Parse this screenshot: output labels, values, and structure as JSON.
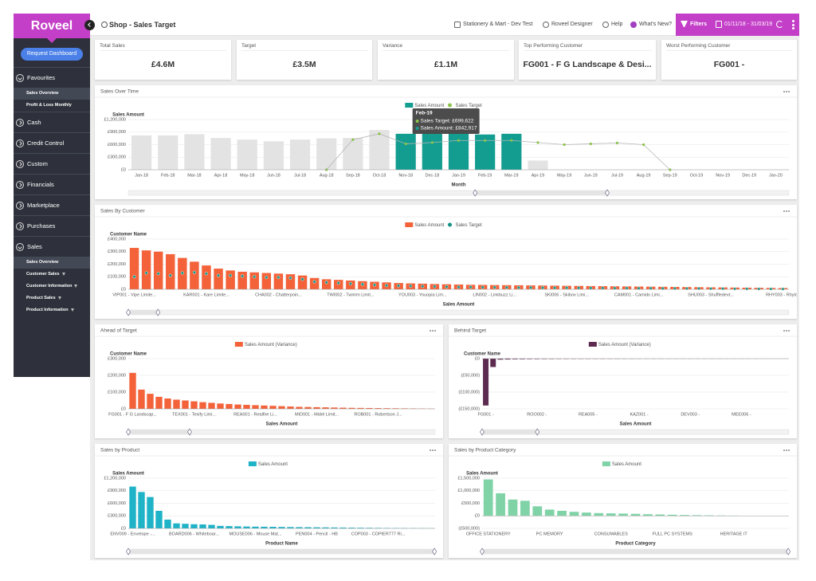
{
  "sidebar": {
    "logo": "Roveel",
    "button": "Request Dashboard",
    "sections": [
      {
        "label": "Favourites",
        "items": [
          {
            "label": "Sales Overview",
            "active": true
          },
          {
            "label": "Profit & Loss Monthly"
          }
        ]
      },
      {
        "label": "Cash"
      },
      {
        "label": "Credit Control"
      },
      {
        "label": "Custom"
      },
      {
        "label": "Financials"
      },
      {
        "label": "Marketplace"
      },
      {
        "label": "Purchases"
      },
      {
        "label": "Sales",
        "items": [
          {
            "label": "Sales Overview",
            "active": true
          },
          {
            "label": "Customer Sales",
            "filter": true
          },
          {
            "label": "Customer Information",
            "filter": true
          },
          {
            "label": "Product Sales",
            "filter": true
          },
          {
            "label": "Product Information",
            "filter": true
          }
        ]
      }
    ]
  },
  "header": {
    "title": "Shop - Sales Target",
    "links": [
      "Stationery & Mart - Dev Test",
      "Roveel Designer",
      "Help",
      "What's New?"
    ],
    "filters": "Filters",
    "date_range": "01/11/18 - 31/03/19"
  },
  "kpis": [
    {
      "label": "Total Sales",
      "value": "£4.6M"
    },
    {
      "label": "Target",
      "value": "£3.5M"
    },
    {
      "label": "Variance",
      "value": "£1.1M"
    },
    {
      "label": "Top Performing Customer",
      "value": "FG001 - F G Landscape & Desi..."
    },
    {
      "label": "Worst Performing Customer",
      "value": "FG001 -"
    }
  ],
  "charts": [
    {
      "type": "bar",
      "title": "Sales Over Time",
      "y_title": "Sales Amount",
      "x_title": "Month",
      "grid": true,
      "categories": [
        "Jan-18",
        "Feb-18",
        "Mar-18",
        "Apr-18",
        "May-18",
        "Jun-18",
        "Jul-18",
        "Aug-18",
        "Sep-18",
        "Oct-18",
        "Nov-18",
        "Dec-18",
        "Jan-19",
        "Feb-19",
        "Mar-19",
        "Apr-19",
        "May-19",
        "Jun-19",
        "Jul-19",
        "Aug-19",
        "Sep-19",
        "Oct-19",
        "Nov-19",
        "Dec-19",
        "Jan-20"
      ],
      "series": [
        {
          "name": "Sales Amount",
          "kind": "bar",
          "color": "#139c90",
          "colors": [
            "#e3e3e3",
            "#e3e3e3",
            "#e3e3e3",
            "#e3e3e3",
            "#e3e3e3",
            "#e3e3e3",
            "#e3e3e3",
            "#e3e3e3",
            "#e3e3e3",
            "#e3e3e3",
            "#139c90",
            "#139c90",
            "#139c90",
            "#139c90",
            "#139c90",
            "#e3e3e3",
            "#e3e3e3",
            "#e3e3e3",
            "#e3e3e3",
            "#e3e3e3",
            "#e3e3e3",
            "#e3e3e3",
            "#e3e3e3",
            "#e3e3e3",
            "#e3e3e3"
          ],
          "values": [
            820000,
            820000,
            850000,
            760000,
            720000,
            680000,
            720000,
            750000,
            760000,
            950000,
            860000,
            860000,
            860000,
            842917,
            860000,
            220000,
            0,
            0,
            0,
            0,
            0,
            0,
            0,
            0,
            0
          ]
        },
        {
          "name": "Sales Target",
          "kind": "line",
          "color": "#b5b5b5",
          "marker_color": "#8bc34a",
          "values": [
            null,
            null,
            null,
            null,
            null,
            null,
            null,
            0,
            720000,
            860000,
            620000,
            650000,
            700000,
            699622,
            700000,
            650000,
            600000,
            620000,
            640000,
            600000,
            0,
            null,
            null,
            null,
            null
          ]
        }
      ],
      "ylim": [
        0,
        1200000
      ],
      "yticks": [
        {
          "value": 0,
          "label": "£0"
        },
        {
          "value": 300000,
          "label": "£300,000"
        },
        {
          "value": 600000,
          "label": "£600,000"
        },
        {
          "value": 900000,
          "label": "£900,000"
        },
        {
          "value": 1200000,
          "label": "£1,200,000"
        }
      ],
      "tooltip": {
        "title": "Feb-19",
        "lines": [
          "Sales Target: £699,622",
          "Sales Amount: £842,917"
        ]
      }
    },
    {
      "type": "bar",
      "title": "Sales By Customer",
      "y_title": "Customer Name",
      "x_title": "Sales Amount",
      "grid": true,
      "categories": [
        "VIP001 - Vipe Limite...",
        null,
        null,
        null,
        null,
        null,
        "KAR001 - Kare Limite...",
        null,
        null,
        null,
        null,
        null,
        "CHA002 - Chatterpoin...",
        null,
        null,
        null,
        null,
        null,
        "TWI002 - Twimm Limit...",
        null,
        null,
        null,
        null,
        null,
        "YOU003 - Youopia Lim...",
        null,
        null,
        null,
        null,
        null,
        "LIN002 - Linkbuzz Li...",
        null,
        null,
        null,
        null,
        null,
        "SKI006 - Skibox Limi...",
        null,
        null,
        null,
        null,
        null,
        "CAM001 - Camido Limi...",
        null,
        null,
        null,
        null,
        null,
        "SHU003 - Shuffledext...",
        null,
        null,
        null,
        null,
        null,
        "RHY003 - Rhyloo"
      ],
      "series": [
        {
          "name": "Sales Amount",
          "kind": "bar",
          "color": "#f4623a",
          "values": [
            330000,
            310000,
            300000,
            280000,
            250000,
            220000,
            190000,
            165000,
            150000,
            140000,
            135000,
            130000,
            125000,
            120000,
            110000,
            90000,
            80000,
            75000,
            70000,
            65000,
            60000,
            55000,
            50000,
            47000,
            45000,
            42000,
            40000,
            38000,
            36000,
            35000,
            34000,
            33000,
            32000,
            31000,
            30000,
            29000,
            28000,
            27000,
            26000,
            25000,
            24000,
            23000,
            22000,
            21000,
            20000,
            19000,
            18000,
            17000,
            16000,
            15000,
            14000,
            13000,
            12000,
            11000,
            10000
          ]
        },
        {
          "name": "Sales Target",
          "kind": "points",
          "color": "#138f86",
          "values": [
            100000,
            130000,
            125000,
            110000,
            130000,
            135000,
            125000,
            110000,
            110000,
            105000,
            100000,
            95000,
            95000,
            90000,
            80000,
            60000,
            55000,
            50000,
            45000,
            40000,
            35000,
            30000,
            28000,
            26000,
            24000,
            22000,
            20000,
            18000,
            18000,
            16000,
            16000,
            15000,
            14000,
            14000,
            13000,
            12000,
            12000,
            11000,
            10000,
            10000,
            9000,
            9000,
            8000,
            8000,
            7000,
            7000,
            6000,
            6000,
            5000,
            5000,
            4000,
            4000,
            3000,
            3000,
            2000
          ]
        }
      ],
      "ylim": [
        0,
        400000
      ],
      "yticks": [
        {
          "value": 0,
          "label": "£0"
        },
        {
          "value": 100000,
          "label": "£100,000"
        },
        {
          "value": 200000,
          "label": "£200,000"
        },
        {
          "value": 300000,
          "label": "£300,000"
        },
        {
          "value": 400000,
          "label": "£400,000"
        }
      ]
    },
    {
      "type": "bar",
      "title": "Ahead of Target",
      "y_title": "Customer Name",
      "x_title": "Sales Amount",
      "grid": true,
      "categories": [
        "FG001 - F G Landscap...",
        null,
        null,
        null,
        null,
        null,
        null,
        "TEX001 - Texify Limi...",
        null,
        null,
        null,
        null,
        null,
        null,
        "REA001 - Realfire Li...",
        null,
        null,
        null,
        null,
        null,
        null,
        "MID001 - Midel Limit...",
        null,
        null,
        null,
        null,
        null,
        null,
        "ROB001 - Robertson J...",
        null,
        null,
        null,
        null,
        null,
        null
      ],
      "series": [
        {
          "name": "Sales Amount (Variance)",
          "kind": "bar",
          "color": "#f4623a",
          "values": [
            215000,
            115000,
            90000,
            72000,
            62000,
            55000,
            50000,
            45000,
            40000,
            36000,
            32000,
            29000,
            26000,
            24000,
            22000,
            20000,
            18000,
            16000,
            14000,
            12000,
            11000,
            10000,
            9000,
            8000,
            7000,
            6000,
            5500,
            5000,
            4500,
            4000,
            3500,
            3000,
            2500,
            2000,
            1500
          ]
        }
      ],
      "ylim": [
        0,
        300000
      ],
      "yticks": [
        {
          "value": 0,
          "label": "£0"
        },
        {
          "value": 100000,
          "label": "£100,000"
        },
        {
          "value": 200000,
          "label": "£200,000"
        },
        {
          "value": 300000,
          "label": "£300,000"
        }
      ]
    },
    {
      "type": "bar",
      "title": "Behind Target",
      "y_title": "Customer Name",
      "x_title": "Sales Amount",
      "grid": true,
      "categories": [
        "FG001 -",
        null,
        null,
        null,
        null,
        null,
        null,
        "ROO002 -",
        null,
        null,
        null,
        null,
        null,
        null,
        "REA005 -",
        null,
        null,
        null,
        null,
        null,
        null,
        "KAZ001 -",
        null,
        null,
        null,
        null,
        null,
        null,
        "DEV003 -",
        null,
        null,
        null,
        null,
        null,
        null,
        "MEE006 -",
        null,
        null,
        null,
        null,
        null,
        null
      ],
      "series": [
        {
          "name": "Sales Amount (Variance)",
          "kind": "bar",
          "color": "#5d2a50",
          "values": [
            -140000,
            -25000,
            -3000,
            -2500,
            -2000,
            -1800,
            -1600,
            -1500,
            -1400,
            -1300,
            -1200,
            -1100,
            -1000,
            -950,
            -900,
            -850,
            -800,
            -750,
            -700,
            -650,
            -600,
            -550,
            -500,
            -480,
            -460,
            -440,
            -420,
            -400,
            -380,
            -360,
            -340,
            -320,
            -300,
            -280,
            -260,
            -240,
            -220,
            -200,
            -180,
            -160,
            -140,
            -120
          ]
        }
      ],
      "ylim": [
        -150000,
        0
      ],
      "yticks": [
        {
          "value": 0,
          "label": "£0"
        },
        {
          "value": -50000,
          "label": "(£50,000)"
        },
        {
          "value": -100000,
          "label": "(£100,000)"
        },
        {
          "value": -150000,
          "label": "(£150,000)"
        }
      ]
    },
    {
      "type": "bar",
      "title": "Sales by Product",
      "y_title": "Sales Amount",
      "x_title": "Product Name",
      "grid": true,
      "categories": [
        "ENV009 - Envelope -...",
        null,
        null,
        null,
        null,
        null,
        null,
        "BOARD006 - Whiteboar...",
        null,
        null,
        null,
        null,
        null,
        null,
        "MOUSE006 - Mouse Mat...",
        null,
        null,
        null,
        null,
        null,
        null,
        "PEN004 - Pencil - HB",
        null,
        null,
        null,
        null,
        null,
        null,
        "COP003 - COPIER777 Ri...",
        null,
        null,
        null,
        null,
        null,
        null
      ],
      "series": [
        {
          "name": "Sales Amount",
          "kind": "bar",
          "color": "#1fb3c8",
          "values": [
            1000000,
            870000,
            750000,
            420000,
            210000,
            120000,
            110000,
            100000,
            95000,
            85000,
            60000,
            55000,
            50000,
            45000,
            42000,
            40000,
            38000,
            35000,
            32000,
            30000,
            28000,
            26000,
            24000,
            22000,
            20000,
            18000,
            16000,
            14000,
            12000,
            10000,
            9000,
            8000,
            7000,
            6000,
            5000
          ]
        }
      ],
      "ylim": [
        0,
        1200000
      ],
      "yticks": [
        {
          "value": 0,
          "label": "£0"
        },
        {
          "value": 300000,
          "label": "£300,000"
        },
        {
          "value": 600000,
          "label": "£600,000"
        },
        {
          "value": 900000,
          "label": "£900,000"
        },
        {
          "value": 1200000,
          "label": "£1,200,000"
        }
      ]
    },
    {
      "type": "bar",
      "title": "Sales by Product Category",
      "y_title": "Sales Amount",
      "x_title": "Product Category",
      "grid": true,
      "categories": [
        "OFFICE STATIONERY",
        null,
        null,
        null,
        null,
        "PC MEMORY",
        null,
        null,
        null,
        null,
        "CONSUMABLES",
        null,
        null,
        null,
        null,
        "FULL PC SYSTEMS",
        null,
        null,
        null,
        null,
        "HERITAGE IT",
        null,
        null,
        null,
        null
      ],
      "series": [
        {
          "name": "Sales Amount",
          "kind": "bar",
          "color": "#7fd3a7",
          "values": [
            1450000,
            900000,
            650000,
            600000,
            380000,
            250000,
            200000,
            160000,
            130000,
            110000,
            100000,
            90000,
            80000,
            65000,
            55000,
            45000,
            35000,
            28000,
            22000,
            17000,
            12000,
            8000,
            5000,
            3000,
            1500
          ]
        }
      ],
      "ylim": [
        -500000,
        1500000
      ],
      "yticks": [
        {
          "value": -500000,
          "label": "(£500,000)"
        },
        {
          "value": 0,
          "label": "£0"
        },
        {
          "value": 500000,
          "label": "£500,000"
        },
        {
          "value": 1000000,
          "label": "£1,000,000"
        },
        {
          "value": 1500000,
          "label": "£1,500,000"
        }
      ]
    }
  ]
}
